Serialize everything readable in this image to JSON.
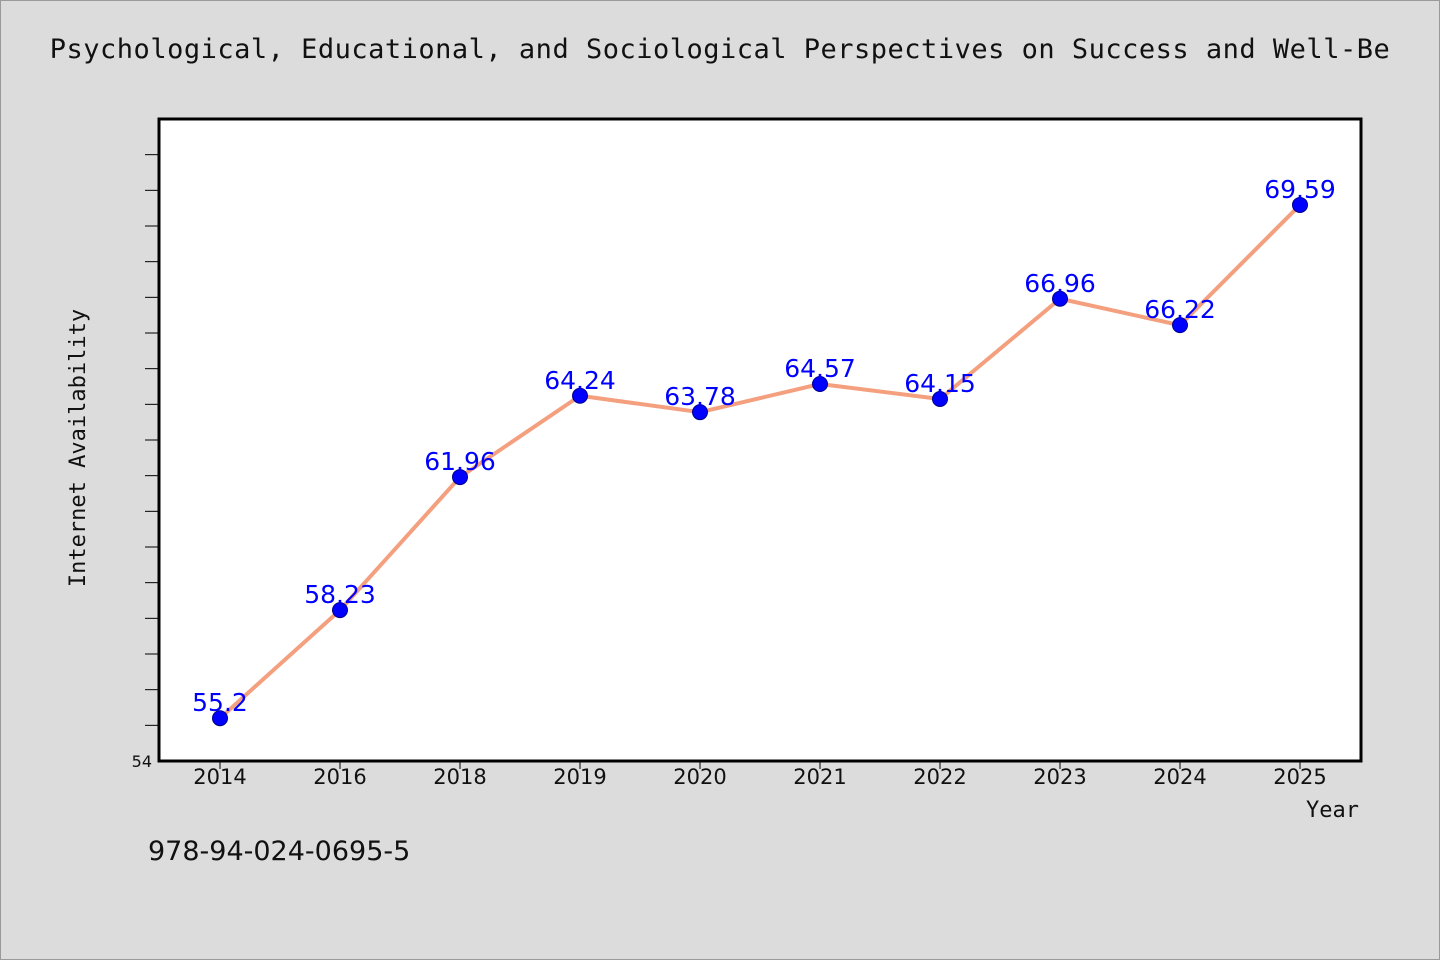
{
  "title": "Psychological, Educational, and Sociological Perspectives on Success and Well-Be",
  "footer_text": "978-94-024-0695-5",
  "colors": {
    "background": "#dcdcdc",
    "plot_background": "#ffffff",
    "line": "#f4a07f",
    "marker": "#0000ff",
    "label": "#0000ff"
  },
  "chart_data": {
    "type": "line",
    "title": "Psychological, Educational, and Sociological Perspectives on Success and Well-Be",
    "xlabel": "Year",
    "ylabel": "Internet Availability",
    "categories": [
      "2014",
      "2016",
      "2018",
      "2019",
      "2020",
      "2021",
      "2022",
      "2023",
      "2024",
      "2025"
    ],
    "series": [
      {
        "values": [
          55.2,
          58.23,
          61.96,
          64.24,
          63.78,
          64.57,
          64.15,
          66.96,
          66.22,
          69.59
        ],
        "labels": [
          "55.2",
          "58.23",
          "61.96",
          "64.24",
          "63.78",
          "64.57",
          "64.15",
          "66.96",
          "66.22",
          "69.59"
        ]
      }
    ],
    "ylim": [
      54,
      72
    ],
    "y_tick_step": 1,
    "y_tick_labels": [
      "54"
    ],
    "grid": false,
    "legend": "none"
  }
}
